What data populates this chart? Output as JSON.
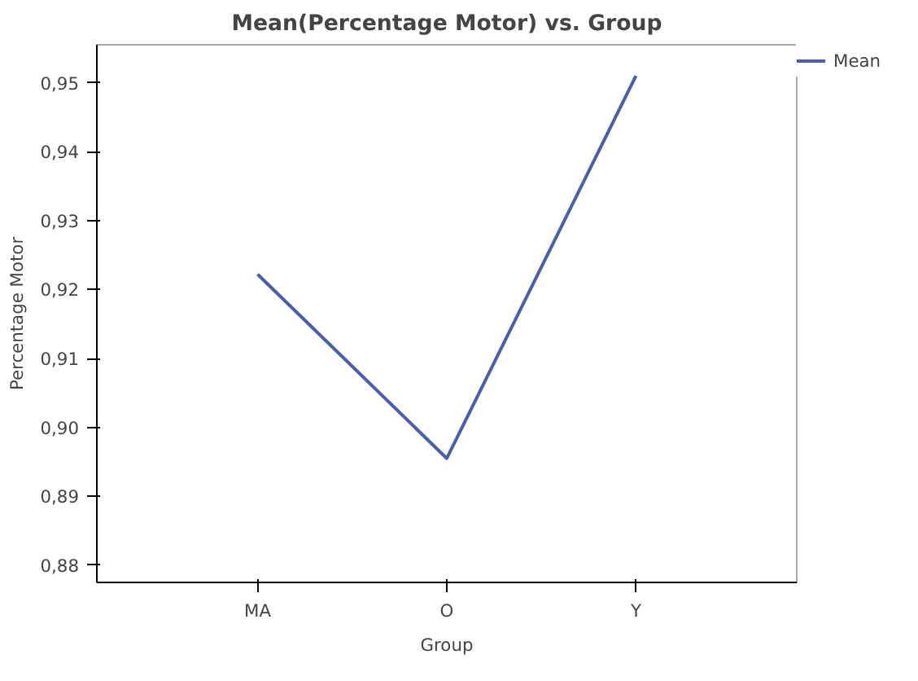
{
  "chart_data": {
    "type": "line",
    "title": "Mean(Percentage Motor) vs. Group",
    "xlabel": "Group",
    "ylabel": "Percentage Motor",
    "categories": [
      "MA",
      "O",
      "Y"
    ],
    "series": [
      {
        "name": "Mean",
        "color": "#4a5fab",
        "values": [
          0.9222,
          0.8955,
          0.951
        ]
      }
    ],
    "ylim": [
      0.8775,
      0.9555
    ],
    "yticks": [
      {
        "value": 0.88,
        "label": "0,88"
      },
      {
        "value": 0.89,
        "label": "0,89"
      },
      {
        "value": 0.9,
        "label": "0,90"
      },
      {
        "value": 0.91,
        "label": "0,91"
      },
      {
        "value": 0.92,
        "label": "0,92"
      },
      {
        "value": 0.93,
        "label": "0,93"
      },
      {
        "value": 0.94,
        "label": "0,94"
      },
      {
        "value": 0.95,
        "label": "0,95"
      }
    ],
    "grid": false,
    "legend": "top right",
    "marker": "none",
    "line_style": "solid"
  }
}
